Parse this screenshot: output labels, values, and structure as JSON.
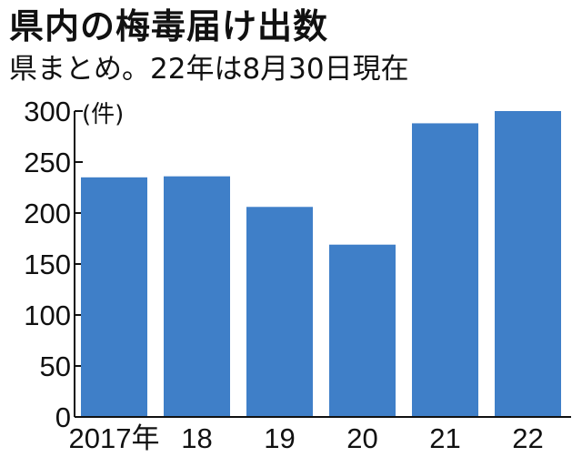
{
  "header": {
    "title": "県内の梅毒届け出数",
    "subtitle": "県まとめ。22年は8月30日現在"
  },
  "colors": {
    "bar": "#3f7fc8",
    "axis": "#111111",
    "background": "#ffffff"
  },
  "chart_data": {
    "type": "bar",
    "title": "県内の梅毒届け出数",
    "subtitle": "県まとめ。22年は8月30日現在",
    "unit_label": "(件)",
    "categories": [
      "2017年",
      "18",
      "19",
      "20",
      "21",
      "22"
    ],
    "values": [
      235,
      236,
      206,
      169,
      288,
      300
    ],
    "ylim": [
      0,
      300
    ],
    "yticks": [
      "0",
      "50",
      "100",
      "150",
      "200",
      "250",
      "300"
    ],
    "grid": false,
    "legend": "none"
  }
}
